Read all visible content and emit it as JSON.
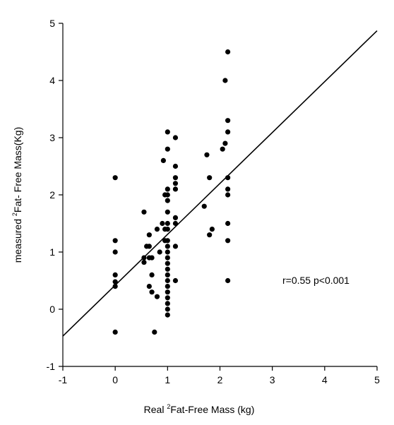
{
  "chart_data": {
    "type": "scatter",
    "title": "",
    "xlabel_prefix": "Real  ",
    "xlabel_sup": "2",
    "xlabel_suffix": "Fat-Free Mass (kg)",
    "ylabel_prefix": "measured ",
    "ylabel_sup": "2",
    "ylabel_suffix": "Fat- Free Mass(Kg)",
    "xlim": [
      -1,
      5
    ],
    "ylim": [
      -1,
      5
    ],
    "xticks": [
      -1,
      0,
      1,
      2,
      3,
      4,
      5
    ],
    "yticks": [
      -1,
      0,
      1,
      2,
      3,
      4,
      5
    ],
    "grid": false,
    "annotation": "r=0.55 p<0.001",
    "regression_line": {
      "x": [
        -1,
        5
      ],
      "y": [
        -0.47,
        4.87
      ]
    },
    "series": [
      {
        "points": [
          [
            0,
            2.3
          ],
          [
            0,
            1.2
          ],
          [
            0,
            1.0
          ],
          [
            0,
            0.6
          ],
          [
            0,
            0.48
          ],
          [
            0,
            0.4
          ],
          [
            0,
            -0.4
          ],
          [
            0.55,
            1.7
          ],
          [
            0.55,
            0.9
          ],
          [
            0.55,
            0.82
          ],
          [
            0.6,
            1.1
          ],
          [
            0.65,
            1.3
          ],
          [
            0.65,
            1.1
          ],
          [
            0.65,
            0.9
          ],
          [
            0.65,
            0.4
          ],
          [
            0.7,
            0.9
          ],
          [
            0.7,
            0.6
          ],
          [
            0.7,
            0.3
          ],
          [
            0.75,
            -0.4
          ],
          [
            0.8,
            1.4
          ],
          [
            0.8,
            0.22
          ],
          [
            0.85,
            1.0
          ],
          [
            0.9,
            1.5
          ],
          [
            0.92,
            2.6
          ],
          [
            0.95,
            2.0
          ],
          [
            0.95,
            1.4
          ],
          [
            0.95,
            1.2
          ],
          [
            1.0,
            3.1
          ],
          [
            1.0,
            2.8
          ],
          [
            1.0,
            2.1
          ],
          [
            1.0,
            2.0
          ],
          [
            1.0,
            1.9
          ],
          [
            1.0,
            1.7
          ],
          [
            1.0,
            1.5
          ],
          [
            1.0,
            1.4
          ],
          [
            1.0,
            1.2
          ],
          [
            1.0,
            1.1
          ],
          [
            1.0,
            1.0
          ],
          [
            1.0,
            0.9
          ],
          [
            1.0,
            0.8
          ],
          [
            1.0,
            0.7
          ],
          [
            1.0,
            0.6
          ],
          [
            1.0,
            0.5
          ],
          [
            1.0,
            0.4
          ],
          [
            1.0,
            0.3
          ],
          [
            1.0,
            0.2
          ],
          [
            1.0,
            0.1
          ],
          [
            1.0,
            0.0
          ],
          [
            1.0,
            -0.1
          ],
          [
            1.15,
            3.0
          ],
          [
            1.15,
            2.5
          ],
          [
            1.15,
            2.3
          ],
          [
            1.15,
            2.2
          ],
          [
            1.15,
            2.1
          ],
          [
            1.15,
            1.6
          ],
          [
            1.15,
            1.5
          ],
          [
            1.15,
            1.1
          ],
          [
            1.15,
            0.5
          ],
          [
            1.7,
            1.8
          ],
          [
            1.75,
            2.7
          ],
          [
            1.8,
            2.3
          ],
          [
            1.8,
            1.3
          ],
          [
            1.85,
            1.4
          ],
          [
            2.05,
            2.8
          ],
          [
            2.1,
            4.0
          ],
          [
            2.1,
            2.9
          ],
          [
            2.15,
            4.5
          ],
          [
            2.15,
            3.3
          ],
          [
            2.15,
            3.1
          ],
          [
            2.15,
            2.3
          ],
          [
            2.15,
            2.1
          ],
          [
            2.15,
            2.0
          ],
          [
            2.15,
            1.5
          ],
          [
            2.15,
            1.2
          ],
          [
            2.15,
            0.5
          ]
        ]
      }
    ]
  }
}
